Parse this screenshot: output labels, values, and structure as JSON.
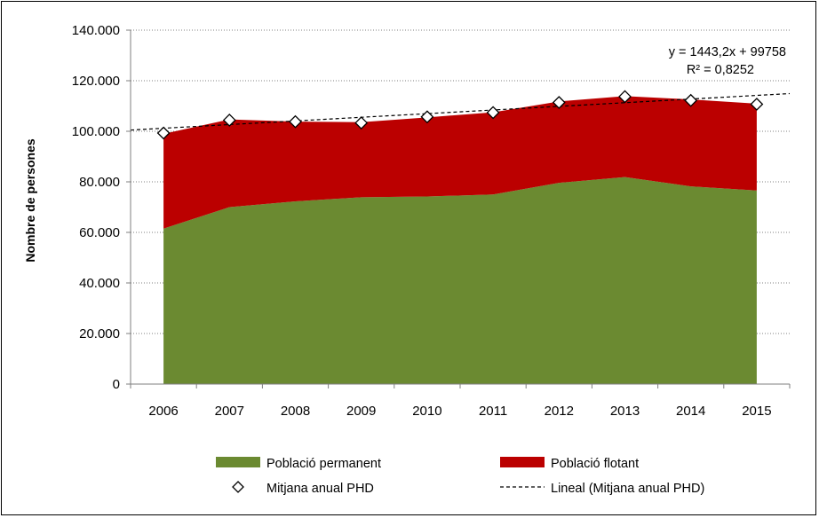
{
  "chart_data": {
    "type": "area",
    "categories": [
      "2006",
      "2007",
      "2008",
      "2009",
      "2010",
      "2011",
      "2012",
      "2013",
      "2014",
      "2015"
    ],
    "ylabel": "Nombre de persones",
    "xlabel": "",
    "ylim": [
      0,
      140000
    ],
    "yticks": [
      0,
      20000,
      40000,
      60000,
      80000,
      100000,
      120000,
      140000
    ],
    "ytick_labels": [
      "0",
      "20.000",
      "40.000",
      "60.000",
      "80.000",
      "100.000",
      "120.000",
      "140.000"
    ],
    "grid": "horizontal dotted",
    "stacked": true,
    "series": [
      {
        "name": "Població permanent",
        "kind": "area",
        "color": "#6B8A31",
        "values": [
          61500,
          70000,
          72300,
          73900,
          74200,
          75000,
          79600,
          81900,
          78200,
          76600
        ]
      },
      {
        "name": "Població flotant",
        "kind": "area",
        "color": "#BB0000",
        "values": [
          37500,
          34700,
          31500,
          29700,
          31300,
          32500,
          32200,
          32000,
          34400,
          34300
        ]
      },
      {
        "name": "Mitjana anual PHD",
        "kind": "marker",
        "marker": "diamond",
        "values": [
          99300,
          104400,
          103800,
          103300,
          105700,
          107400,
          111400,
          113700,
          112200,
          110700
        ]
      },
      {
        "name": "Lineal (Mitjana anual PHD)",
        "kind": "trendline",
        "style": "dashed",
        "slope": 1443.2,
        "intercept": 99758
      }
    ],
    "annotations": [
      "y = 1443,2x + 99758",
      "R² = 0,8252"
    ],
    "legend_position": "bottom"
  }
}
